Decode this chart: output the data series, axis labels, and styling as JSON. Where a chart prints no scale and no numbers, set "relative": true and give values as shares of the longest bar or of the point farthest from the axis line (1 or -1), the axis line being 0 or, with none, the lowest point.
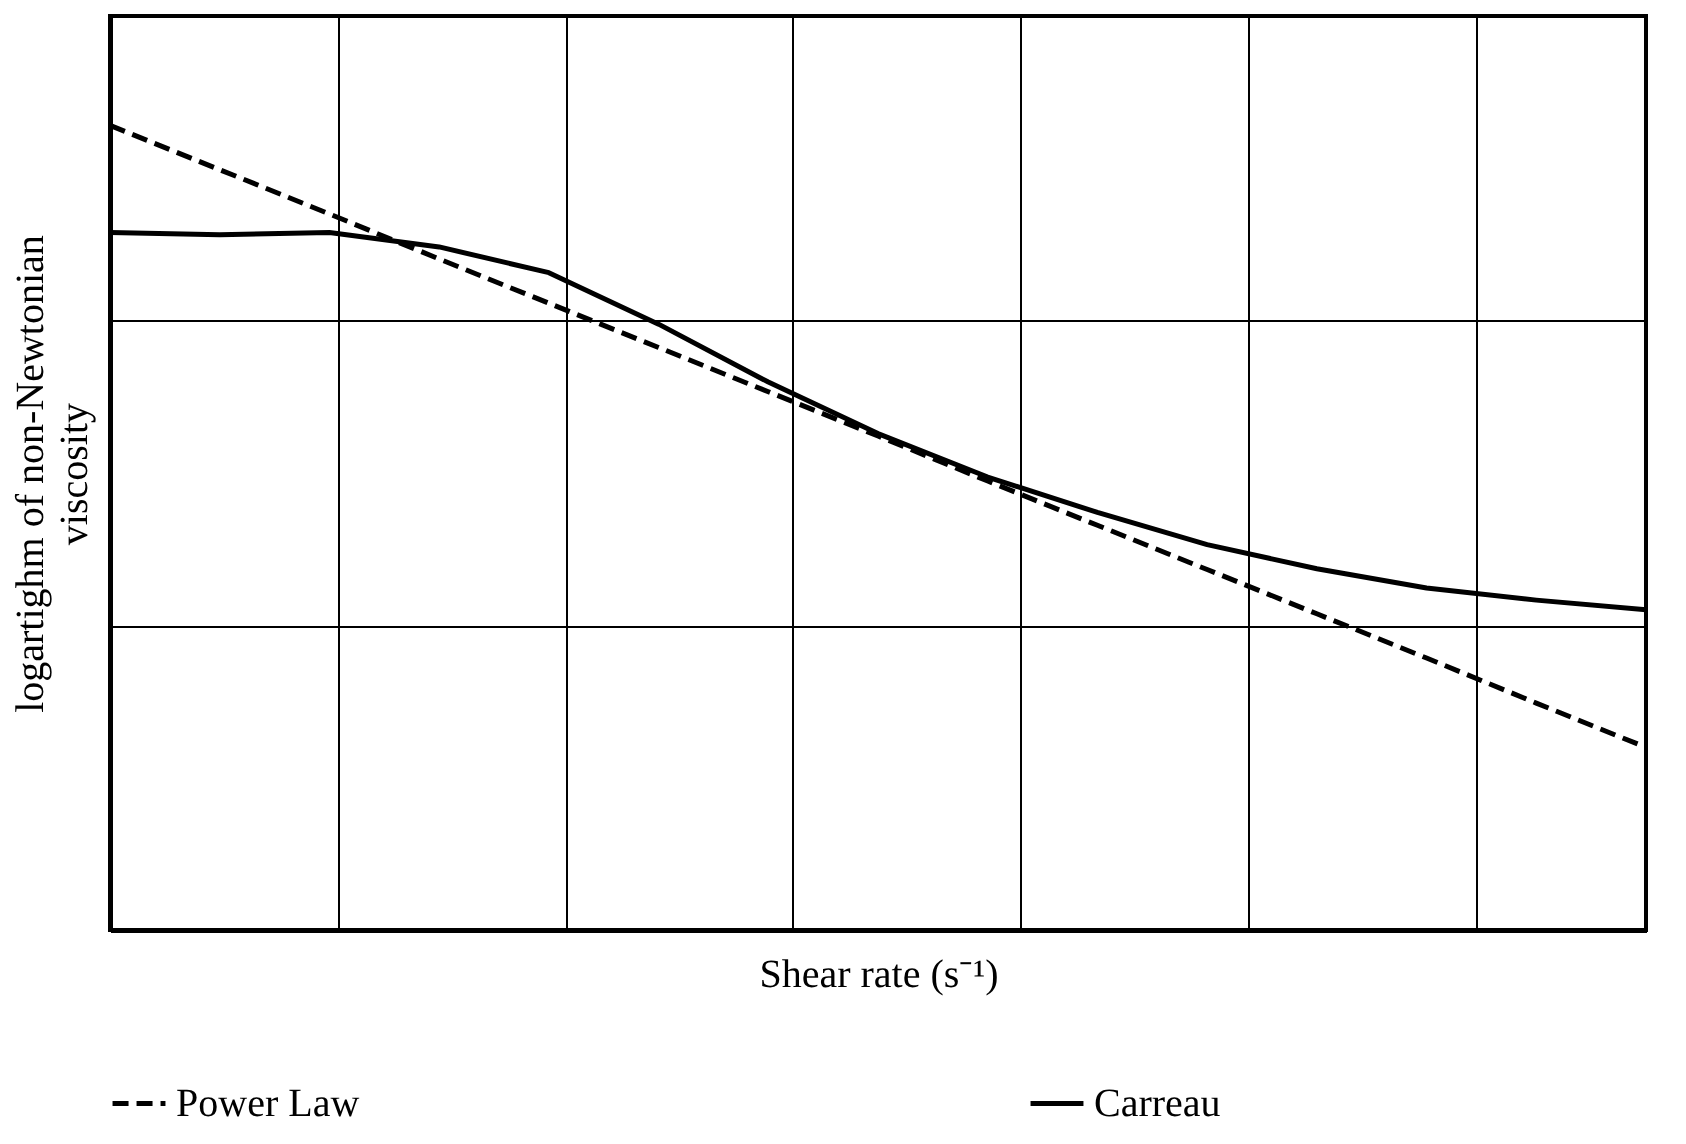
{
  "chart_data": {
    "type": "line",
    "relative": true,
    "xlabel": "Shear rate (s⁻¹)",
    "ylabel": "logartighm of non-Newtonian viscosity",
    "categories": [
      null,
      null,
      null,
      null,
      null,
      null,
      null,
      null,
      null,
      null,
      null,
      null,
      null,
      null,
      null
    ],
    "series": [
      {
        "name": "Power Law",
        "color": "#000000",
        "line_style": "dashed",
        "values": [
          1.0,
          0.945,
          0.89,
          0.834,
          0.779,
          0.724,
          0.669,
          0.614,
          0.558,
          0.503,
          0.448,
          0.393,
          0.338,
          0.282,
          0.227
        ]
      },
      {
        "name": "Carreau",
        "color": "#000000",
        "line_style": "solid",
        "values": [
          0.867,
          0.864,
          0.867,
          0.849,
          0.817,
          0.753,
          0.681,
          0.617,
          0.563,
          0.519,
          0.479,
          0.449,
          0.425,
          0.41,
          0.398
        ]
      }
    ],
    "grid": true,
    "legend": "bottom",
    "marker": "none"
  }
}
